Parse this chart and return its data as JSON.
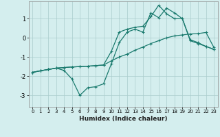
{
  "xlabel": "Humidex (Indice chaleur)",
  "background_color": "#d4eeee",
  "grid_color": "#aacccc",
  "line_color": "#1a7a6e",
  "xlim": [
    -0.5,
    23.5
  ],
  "ylim": [
    -3.6,
    1.9
  ],
  "xticks": [
    0,
    1,
    2,
    3,
    4,
    5,
    6,
    7,
    8,
    9,
    10,
    11,
    12,
    13,
    14,
    15,
    16,
    17,
    18,
    19,
    20,
    21,
    22,
    23
  ],
  "yticks": [
    -3,
    -2,
    -1,
    0,
    1
  ],
  "line1_x": [
    0,
    1,
    2,
    3,
    4,
    5,
    6,
    7,
    8,
    9,
    10,
    11,
    12,
    13,
    14,
    15,
    16,
    17,
    18,
    19,
    20,
    21,
    22,
    23
  ],
  "line1_y": [
    -1.8,
    -1.72,
    -1.65,
    -1.58,
    -1.55,
    -1.52,
    -1.5,
    -1.48,
    -1.45,
    -1.42,
    -1.2,
    -1.0,
    -0.85,
    -0.65,
    -0.48,
    -0.3,
    -0.15,
    0.0,
    0.1,
    0.15,
    0.2,
    0.22,
    0.28,
    -0.5
  ],
  "line2_x": [
    0,
    1,
    2,
    3,
    4,
    5,
    6,
    7,
    8,
    9,
    10,
    11,
    12,
    13,
    14,
    15,
    16,
    17,
    18,
    19,
    20,
    21,
    22,
    23
  ],
  "line2_y": [
    -1.8,
    -1.72,
    -1.65,
    -1.58,
    -1.7,
    -2.15,
    -3.0,
    -2.6,
    -2.55,
    -2.4,
    -1.35,
    -0.25,
    0.3,
    0.45,
    0.3,
    1.3,
    1.05,
    1.55,
    1.3,
    1.0,
    -0.1,
    -0.25,
    -0.45,
    -0.6
  ],
  "line3_x": [
    0,
    1,
    2,
    3,
    4,
    5,
    6,
    7,
    8,
    9,
    10,
    11,
    12,
    13,
    14,
    15,
    16,
    17,
    18,
    19,
    20,
    21,
    22,
    23
  ],
  "line3_y": [
    -1.8,
    -1.72,
    -1.65,
    -1.58,
    -1.55,
    -1.52,
    -1.5,
    -1.48,
    -1.45,
    -1.42,
    -0.7,
    0.3,
    0.45,
    0.55,
    0.6,
    1.1,
    1.7,
    1.25,
    1.0,
    1.0,
    -0.15,
    -0.3,
    -0.45,
    -0.6
  ]
}
